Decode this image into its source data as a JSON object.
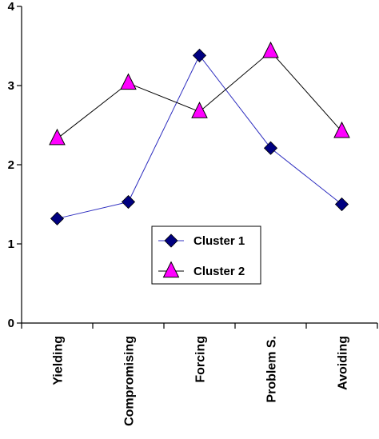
{
  "chart_data": {
    "type": "line",
    "title": "",
    "xlabel": "",
    "ylabel": "",
    "categories": [
      "Yielding",
      "Compromising",
      "Forcing",
      "Problem S.",
      "Avoiding"
    ],
    "ylim": [
      0,
      4
    ],
    "yticks": [
      "0",
      "1",
      "2",
      "3",
      "4"
    ],
    "grid": false,
    "legend_position": "center",
    "series": [
      {
        "name": "Cluster 1",
        "values": [
          1.32,
          1.53,
          3.38,
          2.21,
          1.5
        ],
        "marker": "diamond",
        "line_color": "#3030c0",
        "marker_fill": "#000080"
      },
      {
        "name": "Cluster 2",
        "values": [
          2.33,
          3.03,
          2.67,
          3.43,
          2.42
        ],
        "marker": "triangle",
        "line_color": "#000000",
        "marker_fill": "#ff00ff"
      }
    ]
  }
}
